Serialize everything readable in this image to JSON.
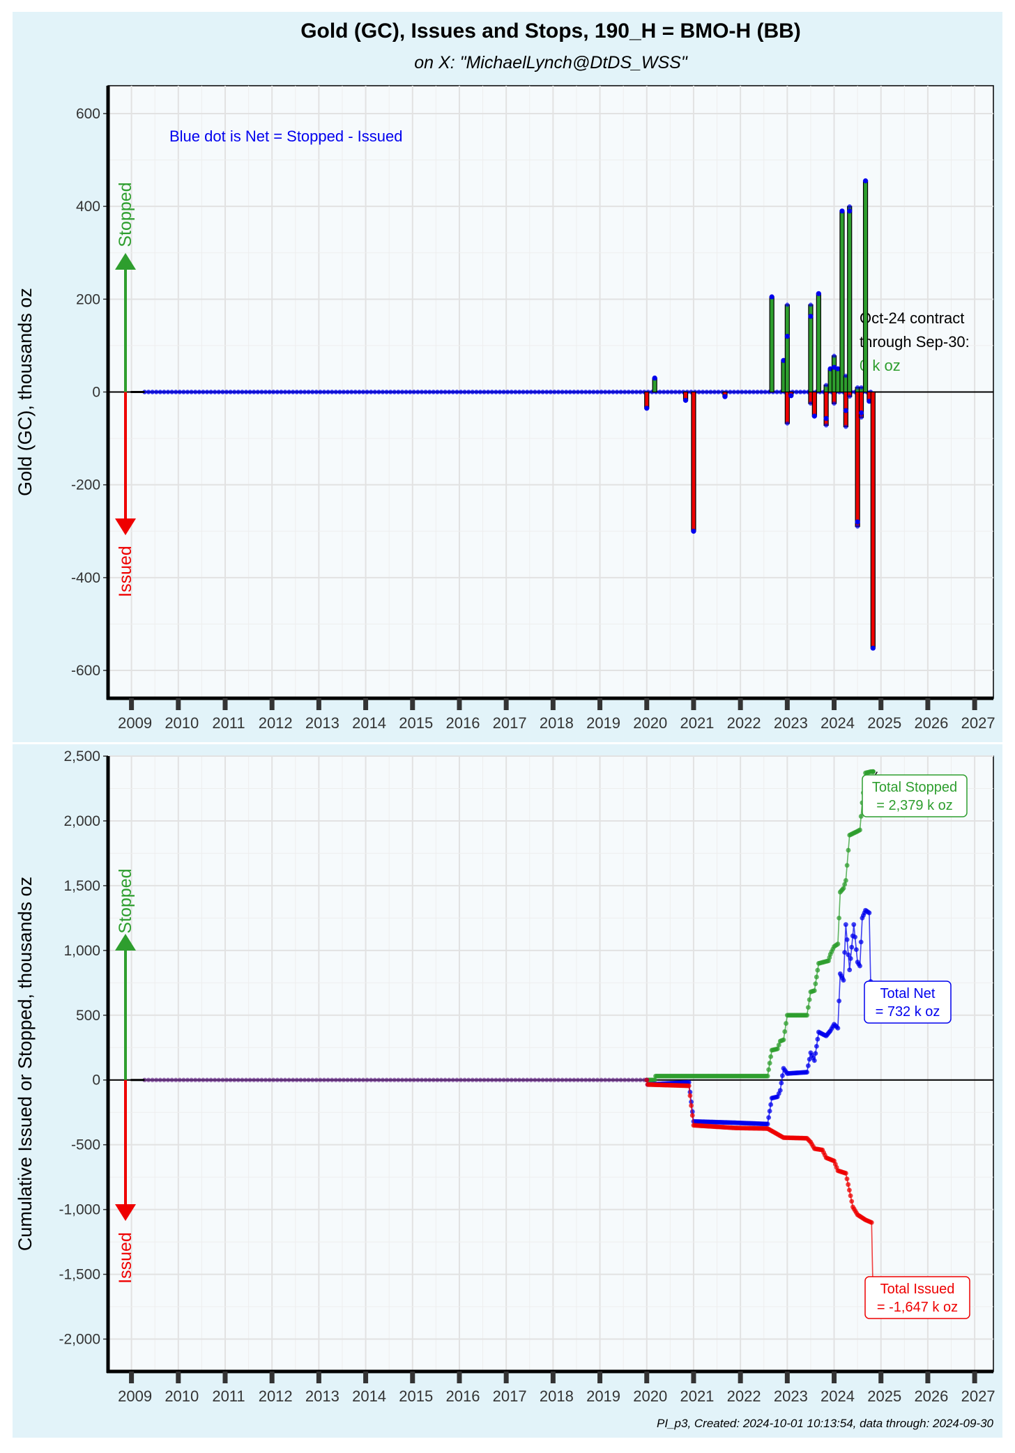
{
  "title": "Gold (GC), Issues and Stops, 190_H = BMO-H (BB)",
  "subtitle": "on X:   \"MichaelLynch@DtDS_WSS\"",
  "footer": "PI_p3, Created: 2024-10-01 10:13:54, data through: 2024-09-30",
  "colors": {
    "stopped": "#2e9e2e",
    "issued": "#ee0000",
    "net": "#0000ee",
    "panel_bg": "#e2f3f9",
    "plot_bg": "#f6fafc"
  },
  "direction_labels": {
    "stopped": "Stopped",
    "issued": "Issued"
  },
  "chart_data": [
    {
      "type": "bar",
      "ylabel": "Gold (GC), thousands oz",
      "xlabel": "",
      "x_ticks": [
        "2009",
        "2010",
        "2011",
        "2012",
        "2013",
        "2014",
        "2015",
        "2016",
        "2017",
        "2018",
        "2019",
        "2020",
        "2021",
        "2022",
        "2023",
        "2024",
        "2025",
        "2026",
        "2027"
      ],
      "x_range": [
        2008.5,
        2027.4
      ],
      "y_ticks": [
        600,
        400,
        200,
        0,
        -200,
        -400,
        -600
      ],
      "ylim": [
        -660,
        660
      ],
      "annotation": "Blue dot is Net = Stopped - Issued",
      "contract_note": {
        "line1": "Oct-24 contract",
        "line2": " through Sep-30:",
        "value": "0 k oz"
      },
      "baseline_start": 2009.28,
      "data_end": 2024.83,
      "bars": [
        {
          "x": 2020.0,
          "stopped": 0,
          "issued": -35
        },
        {
          "x": 2020.17,
          "stopped": 30,
          "issued": 0
        },
        {
          "x": 2020.83,
          "stopped": 0,
          "issued": -18
        },
        {
          "x": 2021.0,
          "stopped": 0,
          "issued": -300
        },
        {
          "x": 2021.67,
          "stopped": 0,
          "issued": -10
        },
        {
          "x": 2022.67,
          "stopped": 205,
          "issued": 0
        },
        {
          "x": 2022.92,
          "stopped": 68,
          "issued": 0
        },
        {
          "x": 2023.0,
          "stopped": 188,
          "issued": -68
        },
        {
          "x": 2023.08,
          "stopped": 0,
          "issued": -8
        },
        {
          "x": 2023.5,
          "stopped": 188,
          "issued": -25
        },
        {
          "x": 2023.58,
          "stopped": 0,
          "issued": -52
        },
        {
          "x": 2023.67,
          "stopped": 212,
          "issued": 0
        },
        {
          "x": 2023.83,
          "stopped": 15,
          "issued": -72
        },
        {
          "x": 2023.92,
          "stopped": 50,
          "issued": 0
        },
        {
          "x": 2024.0,
          "stopped": 78,
          "issued": -25
        },
        {
          "x": 2024.08,
          "stopped": 50,
          "issued": 0
        },
        {
          "x": 2024.17,
          "stopped": 390,
          "issued": 0
        },
        {
          "x": 2024.25,
          "stopped": 35,
          "issued": -75
        },
        {
          "x": 2024.33,
          "stopped": 400,
          "issued": -10
        },
        {
          "x": 2024.5,
          "stopped": 10,
          "issued": -290
        },
        {
          "x": 2024.58,
          "stopped": 10,
          "issued": -55
        },
        {
          "x": 2024.67,
          "stopped": 455,
          "issued": 0
        },
        {
          "x": 2024.75,
          "stopped": 0,
          "issued": -20
        },
        {
          "x": 2024.83,
          "stopped": 0,
          "issued": -552
        }
      ]
    },
    {
      "type": "line",
      "ylabel": "Cumulative Issued or Stopped, thousands oz",
      "xlabel": "",
      "x_ticks": [
        "2009",
        "2010",
        "2011",
        "2012",
        "2013",
        "2014",
        "2015",
        "2016",
        "2017",
        "2018",
        "2019",
        "2020",
        "2021",
        "2022",
        "2023",
        "2024",
        "2025",
        "2026",
        "2027"
      ],
      "x_range": [
        2008.5,
        2027.4
      ],
      "y_ticks": [
        2500,
        2000,
        1500,
        1000,
        500,
        0,
        -500,
        -1000,
        -1500,
        -2000
      ],
      "y_tick_labels": [
        "2,500",
        "2,000",
        "1,500",
        "1,000",
        "500",
        "0",
        "-500",
        "-1,000",
        "-1,500",
        "-2,000"
      ],
      "ylim": [
        -2250,
        2500
      ],
      "baseline_start": 2009.28,
      "series": [
        {
          "name": "Stopped",
          "points": [
            [
              2020.0,
              0
            ],
            [
              2020.17,
              0
            ],
            [
              2020.19,
              30
            ],
            [
              2021.83,
              30
            ],
            [
              2022.58,
              30
            ],
            [
              2022.67,
              230
            ],
            [
              2022.79,
              240
            ],
            [
              2022.85,
              300
            ],
            [
              2022.92,
              310
            ],
            [
              2023.0,
              500
            ],
            [
              2023.42,
              500
            ],
            [
              2023.5,
              680
            ],
            [
              2023.58,
              690
            ],
            [
              2023.67,
              900
            ],
            [
              2023.88,
              920
            ],
            [
              2023.92,
              970
            ],
            [
              2024.0,
              1030
            ],
            [
              2024.08,
              1050
            ],
            [
              2024.13,
              1450
            ],
            [
              2024.2,
              1480
            ],
            [
              2024.25,
              1540
            ],
            [
              2024.33,
              1890
            ],
            [
              2024.5,
              1920
            ],
            [
              2024.55,
              1930
            ],
            [
              2024.6,
              2140
            ],
            [
              2024.67,
              2370
            ],
            [
              2024.78,
              2380
            ],
            [
              2024.83,
              2380
            ]
          ]
        },
        {
          "name": "Net",
          "points": [
            [
              2020.0,
              0
            ],
            [
              2020.02,
              -35
            ],
            [
              2020.9,
              -18
            ],
            [
              2021.0,
              -320
            ],
            [
              2021.88,
              -330
            ],
            [
              2022.58,
              -340
            ],
            [
              2022.67,
              -140
            ],
            [
              2022.79,
              -130
            ],
            [
              2022.85,
              -80
            ],
            [
              2022.92,
              90
            ],
            [
              2023.0,
              50
            ],
            [
              2023.42,
              60
            ],
            [
              2023.5,
              210
            ],
            [
              2023.58,
              150
            ],
            [
              2023.67,
              370
            ],
            [
              2023.83,
              340
            ],
            [
              2023.92,
              380
            ],
            [
              2024.0,
              430
            ],
            [
              2024.08,
              400
            ],
            [
              2024.13,
              820
            ],
            [
              2024.2,
              770
            ],
            [
              2024.25,
              1200
            ],
            [
              2024.33,
              850
            ],
            [
              2024.42,
              1200
            ],
            [
              2024.5,
              910
            ],
            [
              2024.55,
              880
            ],
            [
              2024.6,
              1250
            ],
            [
              2024.67,
              1310
            ],
            [
              2024.75,
              1290
            ],
            [
              2024.78,
              760
            ],
            [
              2024.83,
              732
            ]
          ]
        },
        {
          "name": "Issued",
          "points": [
            [
              2020.0,
              0
            ],
            [
              2020.02,
              -35
            ],
            [
              2020.9,
              -45
            ],
            [
              2021.0,
              -350
            ],
            [
              2021.88,
              -370
            ],
            [
              2022.58,
              -375
            ],
            [
              2022.92,
              -445
            ],
            [
              2023.42,
              -450
            ],
            [
              2023.5,
              -480
            ],
            [
              2023.58,
              -530
            ],
            [
              2023.75,
              -540
            ],
            [
              2023.83,
              -600
            ],
            [
              2024.0,
              -625
            ],
            [
              2024.08,
              -700
            ],
            [
              2024.25,
              -720
            ],
            [
              2024.4,
              -980
            ],
            [
              2024.5,
              -1040
            ],
            [
              2024.67,
              -1080
            ],
            [
              2024.8,
              -1100
            ],
            [
              2024.83,
              -1647
            ]
          ]
        }
      ],
      "labels": [
        {
          "series": "Stopped",
          "line1": "Total Stopped",
          "line2": " = 2,379 k oz",
          "value": 2379
        },
        {
          "series": "Net",
          "line1": "Total Net",
          "line2": " = 732 k oz",
          "value": 732
        },
        {
          "series": "Issued",
          "line1": "Total Issued",
          "line2": " = -1,647 k oz",
          "value": -1647
        }
      ]
    }
  ]
}
